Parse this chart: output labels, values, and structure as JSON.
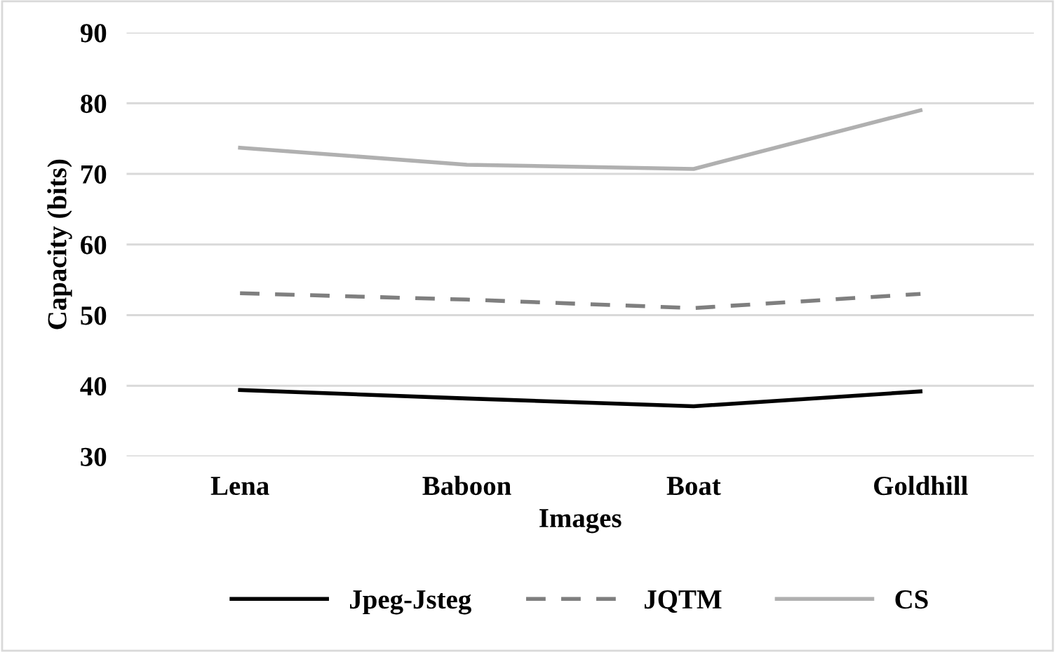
{
  "chart_data": {
    "type": "line",
    "xlabel": "Images",
    "ylabel": "Capacity (bits)",
    "categories": [
      "Lena",
      "Baboon",
      "Boat",
      "Goldhill"
    ],
    "series": [
      {
        "name": "Jpeg-Jsteg",
        "color": "#000000",
        "line_style": "solid",
        "values": [
          39.4,
          38.2,
          37.1,
          39.2
        ]
      },
      {
        "name": "JQTM",
        "color": "#7f7f7f",
        "line_style": "dashed",
        "values": [
          53.1,
          52.2,
          51.0,
          53.0
        ]
      },
      {
        "name": "CS",
        "color": "#b0b0b0",
        "line_style": "solid",
        "values": [
          73.7,
          71.3,
          70.7,
          79.0
        ]
      }
    ],
    "ylim": [
      30,
      90
    ],
    "yticks": [
      30,
      40,
      50,
      60,
      70,
      80,
      90
    ],
    "grid": "y",
    "legend": "bottom",
    "marker": "none"
  }
}
